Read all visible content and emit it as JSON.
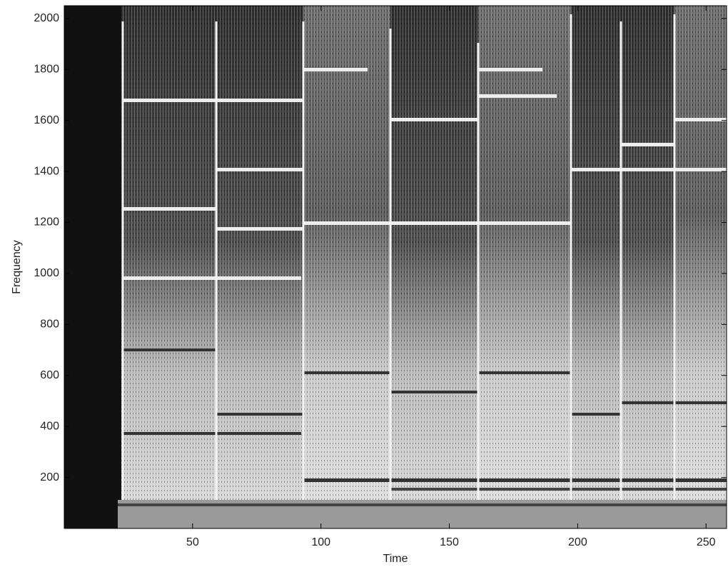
{
  "chart_data": {
    "type": "spectrogram",
    "x_label": "Time",
    "y_label": "Frequency",
    "xlim": [
      0,
      258
    ],
    "xticks": [
      50,
      100,
      150,
      200,
      250
    ],
    "ylim": [
      0,
      2050
    ],
    "yticks": [
      200,
      400,
      600,
      800,
      1000,
      1200,
      1400,
      1600,
      1800,
      2000
    ]
  }
}
